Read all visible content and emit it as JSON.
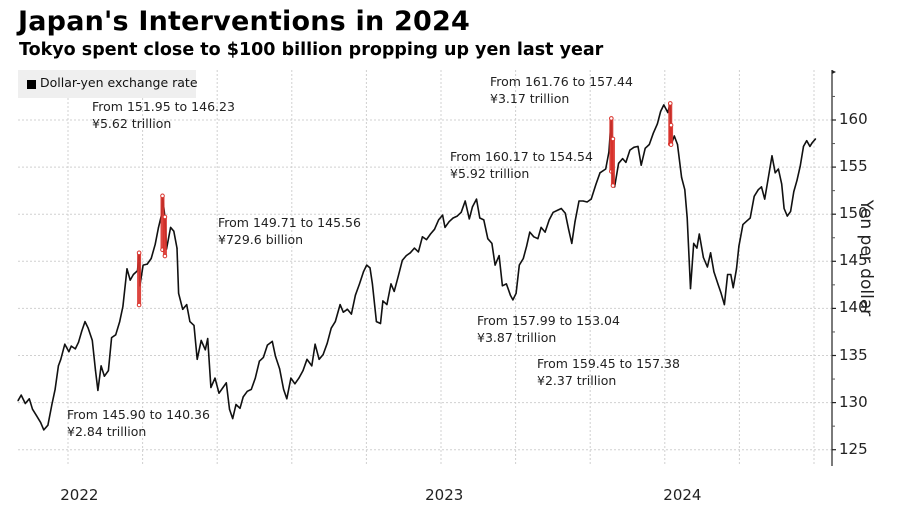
{
  "header": {
    "title": "Japan's Interventions in 2024",
    "subtitle": "Tokyo spent close to $100 billion propping up yen last year"
  },
  "colors": {
    "line": "#111111",
    "intervention": "#d9322b",
    "grid": "#d0d0d0",
    "legend_bg": "#efefef"
  },
  "chart_data": {
    "type": "line",
    "title": "Japan's Interventions in 2024",
    "subtitle": "Tokyo spent close to $100 billion propping up yen last year",
    "xlabel": "",
    "ylabel": "Yen per dollar",
    "ylim": [
      124,
      164
    ],
    "xlim": [
      "2022-04-25",
      "2025-01-10"
    ],
    "yticks": [
      125,
      130,
      135,
      140,
      145,
      150,
      155,
      160
    ],
    "xticks": [
      {
        "label": "2022",
        "date": "2022-07-10"
      },
      {
        "label": "2023",
        "date": "2023-10-05"
      },
      {
        "label": "2024",
        "date": "2024-07-26"
      }
    ],
    "grid": true,
    "legend": {
      "position": "top-left",
      "entries": [
        "Dollar-yen exchange rate"
      ]
    },
    "series": [
      {
        "name": "Dollar-yen exchange rate",
        "points": [
          [
            "2022-04-25",
            130.2
          ],
          [
            "2022-04-29",
            130.8
          ],
          [
            "2022-05-04",
            129.9
          ],
          [
            "2022-05-09",
            130.4
          ],
          [
            "2022-05-13",
            129.3
          ],
          [
            "2022-05-18",
            128.6
          ],
          [
            "2022-05-23",
            127.9
          ],
          [
            "2022-05-27",
            127.1
          ],
          [
            "2022-06-01",
            127.6
          ],
          [
            "2022-06-06",
            129.8
          ],
          [
            "2022-06-10",
            131.4
          ],
          [
            "2022-06-14",
            133.9
          ],
          [
            "2022-06-17",
            134.6
          ],
          [
            "2022-06-22",
            136.2
          ],
          [
            "2022-06-27",
            135.4
          ],
          [
            "2022-06-30",
            136.0
          ],
          [
            "2022-07-05",
            135.7
          ],
          [
            "2022-07-09",
            136.4
          ],
          [
            "2022-07-13",
            137.6
          ],
          [
            "2022-07-17",
            138.6
          ],
          [
            "2022-07-21",
            137.9
          ],
          [
            "2022-07-26",
            136.6
          ],
          [
            "2022-07-30",
            133.4
          ],
          [
            "2022-08-02",
            131.3
          ],
          [
            "2022-08-06",
            133.9
          ],
          [
            "2022-08-10",
            132.8
          ],
          [
            "2022-08-15",
            133.4
          ],
          [
            "2022-08-19",
            136.9
          ],
          [
            "2022-08-24",
            137.2
          ],
          [
            "2022-08-29",
            138.6
          ],
          [
            "2022-09-02",
            140.2
          ],
          [
            "2022-09-07",
            144.2
          ],
          [
            "2022-09-11",
            143.0
          ],
          [
            "2022-09-15",
            143.6
          ],
          [
            "2022-09-20",
            144.0
          ],
          [
            "2022-09-22",
            145.9
          ],
          [
            "2022-09-23",
            142.4
          ],
          [
            "2022-09-27",
            144.6
          ],
          [
            "2022-10-02",
            144.7
          ],
          [
            "2022-10-07",
            145.3
          ],
          [
            "2022-10-12",
            146.8
          ],
          [
            "2022-10-16",
            148.6
          ],
          [
            "2022-10-20",
            150.0
          ],
          [
            "2022-10-21",
            151.9
          ],
          [
            "2022-10-24",
            149.7
          ],
          [
            "2022-10-26",
            146.3
          ],
          [
            "2022-10-31",
            148.6
          ],
          [
            "2022-11-04",
            148.2
          ],
          [
            "2022-11-08",
            146.4
          ],
          [
            "2022-11-10",
            141.6
          ],
          [
            "2022-11-15",
            139.9
          ],
          [
            "2022-11-20",
            140.4
          ],
          [
            "2022-11-24",
            138.6
          ],
          [
            "2022-11-29",
            138.2
          ],
          [
            "2022-12-03",
            134.6
          ],
          [
            "2022-12-08",
            136.6
          ],
          [
            "2022-12-13",
            135.6
          ],
          [
            "2022-12-16",
            136.8
          ],
          [
            "2022-12-20",
            131.6
          ],
          [
            "2022-12-25",
            132.6
          ],
          [
            "2022-12-30",
            131.0
          ],
          [
            "2023-01-04",
            131.6
          ],
          [
            "2023-01-08",
            132.1
          ],
          [
            "2023-01-12",
            129.3
          ],
          [
            "2023-01-16",
            128.3
          ],
          [
            "2023-01-20",
            129.8
          ],
          [
            "2023-01-25",
            129.4
          ],
          [
            "2023-01-29",
            130.6
          ],
          [
            "2023-02-03",
            131.2
          ],
          [
            "2023-02-08",
            131.4
          ],
          [
            "2023-02-13",
            132.6
          ],
          [
            "2023-02-18",
            134.4
          ],
          [
            "2023-02-23",
            134.8
          ],
          [
            "2023-02-28",
            136.1
          ],
          [
            "2023-03-06",
            136.5
          ],
          [
            "2023-03-10",
            134.9
          ],
          [
            "2023-03-15",
            133.6
          ],
          [
            "2023-03-20",
            131.4
          ],
          [
            "2023-03-24",
            130.4
          ],
          [
            "2023-03-29",
            132.6
          ],
          [
            "2023-04-03",
            132.0
          ],
          [
            "2023-04-08",
            132.6
          ],
          [
            "2023-04-13",
            133.4
          ],
          [
            "2023-04-18",
            134.6
          ],
          [
            "2023-04-24",
            133.9
          ],
          [
            "2023-04-28",
            136.2
          ],
          [
            "2023-05-03",
            134.6
          ],
          [
            "2023-05-08",
            135.1
          ],
          [
            "2023-05-13",
            136.3
          ],
          [
            "2023-05-18",
            137.9
          ],
          [
            "2023-05-23",
            138.6
          ],
          [
            "2023-05-29",
            140.4
          ],
          [
            "2023-06-02",
            139.6
          ],
          [
            "2023-06-07",
            139.9
          ],
          [
            "2023-06-12",
            139.4
          ],
          [
            "2023-06-17",
            141.4
          ],
          [
            "2023-06-22",
            142.6
          ],
          [
            "2023-06-27",
            143.9
          ],
          [
            "2023-07-01",
            144.6
          ],
          [
            "2023-07-05",
            144.3
          ],
          [
            "2023-07-08",
            142.6
          ],
          [
            "2023-07-13",
            138.6
          ],
          [
            "2023-07-18",
            138.4
          ],
          [
            "2023-07-21",
            140.8
          ],
          [
            "2023-07-26",
            140.4
          ],
          [
            "2023-07-31",
            142.6
          ],
          [
            "2023-08-04",
            141.8
          ],
          [
            "2023-08-09",
            143.4
          ],
          [
            "2023-08-14",
            145.1
          ],
          [
            "2023-08-19",
            145.6
          ],
          [
            "2023-08-24",
            145.9
          ],
          [
            "2023-08-29",
            146.4
          ],
          [
            "2023-09-03",
            146.0
          ],
          [
            "2023-09-08",
            147.6
          ],
          [
            "2023-09-13",
            147.3
          ],
          [
            "2023-09-18",
            147.9
          ],
          [
            "2023-09-23",
            148.4
          ],
          [
            "2023-09-28",
            149.4
          ],
          [
            "2023-10-03",
            149.9
          ],
          [
            "2023-10-06",
            148.6
          ],
          [
            "2023-10-11",
            149.2
          ],
          [
            "2023-10-16",
            149.6
          ],
          [
            "2023-10-21",
            149.8
          ],
          [
            "2023-10-26",
            150.2
          ],
          [
            "2023-10-31",
            151.4
          ],
          [
            "2023-11-05",
            149.5
          ],
          [
            "2023-11-09",
            150.8
          ],
          [
            "2023-11-14",
            151.6
          ],
          [
            "2023-11-18",
            149.6
          ],
          [
            "2023-11-23",
            149.4
          ],
          [
            "2023-11-28",
            147.4
          ],
          [
            "2023-12-03",
            146.9
          ],
          [
            "2023-12-07",
            144.6
          ],
          [
            "2023-12-12",
            145.6
          ],
          [
            "2023-12-16",
            142.4
          ],
          [
            "2023-12-21",
            142.6
          ],
          [
            "2023-12-26",
            141.4
          ],
          [
            "2023-12-29",
            140.9
          ],
          [
            "2024-01-02",
            141.6
          ],
          [
            "2024-01-06",
            144.6
          ],
          [
            "2024-01-11",
            145.3
          ],
          [
            "2024-01-15",
            146.6
          ],
          [
            "2024-01-19",
            148.1
          ],
          [
            "2024-01-24",
            147.6
          ],
          [
            "2024-01-29",
            147.4
          ],
          [
            "2024-02-02",
            148.6
          ],
          [
            "2024-02-07",
            148.1
          ],
          [
            "2024-02-12",
            149.4
          ],
          [
            "2024-02-17",
            150.2
          ],
          [
            "2024-02-22",
            150.4
          ],
          [
            "2024-02-27",
            150.6
          ],
          [
            "2024-03-03",
            150.1
          ],
          [
            "2024-03-07",
            148.4
          ],
          [
            "2024-03-11",
            146.9
          ],
          [
            "2024-03-15",
            149.2
          ],
          [
            "2024-03-20",
            151.4
          ],
          [
            "2024-03-25",
            151.4
          ],
          [
            "2024-03-30",
            151.3
          ],
          [
            "2024-04-04",
            151.6
          ],
          [
            "2024-04-10",
            153.2
          ],
          [
            "2024-04-15",
            154.4
          ],
          [
            "2024-04-22",
            154.8
          ],
          [
            "2024-04-26",
            156.6
          ],
          [
            "2024-04-29",
            160.2
          ],
          [
            "2024-05-01",
            153.1
          ],
          [
            "2024-05-03",
            152.9
          ],
          [
            "2024-05-08",
            155.4
          ],
          [
            "2024-05-13",
            155.9
          ],
          [
            "2024-05-17",
            155.5
          ],
          [
            "2024-05-22",
            156.8
          ],
          [
            "2024-05-27",
            157.1
          ],
          [
            "2024-06-01",
            157.2
          ],
          [
            "2024-06-05",
            155.2
          ],
          [
            "2024-06-10",
            157.0
          ],
          [
            "2024-06-15",
            157.4
          ],
          [
            "2024-06-20",
            158.6
          ],
          [
            "2024-06-25",
            159.6
          ],
          [
            "2024-06-29",
            160.9
          ],
          [
            "2024-07-03",
            161.6
          ],
          [
            "2024-07-08",
            160.8
          ],
          [
            "2024-07-11",
            161.8
          ],
          [
            "2024-07-12",
            157.4
          ],
          [
            "2024-07-16",
            158.3
          ],
          [
            "2024-07-20",
            157.4
          ],
          [
            "2024-07-25",
            153.9
          ],
          [
            "2024-07-29",
            152.6
          ],
          [
            "2024-08-01",
            149.6
          ],
          [
            "2024-08-05",
            142.1
          ],
          [
            "2024-08-09",
            146.9
          ],
          [
            "2024-08-13",
            146.4
          ],
          [
            "2024-08-16",
            147.9
          ],
          [
            "2024-08-21",
            145.4
          ],
          [
            "2024-08-26",
            144.4
          ],
          [
            "2024-08-30",
            145.9
          ],
          [
            "2024-09-03",
            143.9
          ],
          [
            "2024-09-08",
            142.6
          ],
          [
            "2024-09-12",
            141.6
          ],
          [
            "2024-09-16",
            140.4
          ],
          [
            "2024-09-20",
            143.6
          ],
          [
            "2024-09-24",
            143.6
          ],
          [
            "2024-09-27",
            142.2
          ],
          [
            "2024-10-01",
            144.2
          ],
          [
            "2024-10-04",
            146.6
          ],
          [
            "2024-10-09",
            148.9
          ],
          [
            "2024-10-14",
            149.3
          ],
          [
            "2024-10-18",
            149.6
          ],
          [
            "2024-10-23",
            151.9
          ],
          [
            "2024-10-28",
            152.6
          ],
          [
            "2024-11-01",
            152.9
          ],
          [
            "2024-11-05",
            151.6
          ],
          [
            "2024-11-09",
            153.6
          ],
          [
            "2024-11-14",
            156.2
          ],
          [
            "2024-11-18",
            154.4
          ],
          [
            "2024-11-22",
            154.8
          ],
          [
            "2024-11-26",
            153.2
          ],
          [
            "2024-11-29",
            150.6
          ],
          [
            "2024-12-03",
            149.8
          ],
          [
            "2024-12-07",
            150.3
          ],
          [
            "2024-12-11",
            152.4
          ],
          [
            "2024-12-15",
            153.6
          ],
          [
            "2024-12-19",
            155.1
          ],
          [
            "2024-12-23",
            157.2
          ],
          [
            "2024-12-27",
            157.8
          ],
          [
            "2024-12-31",
            157.2
          ],
          [
            "2025-01-03",
            157.6
          ],
          [
            "2025-01-07",
            158.0
          ]
        ]
      }
    ],
    "interventions": [
      {
        "date": "2022-09-22",
        "from": 145.9,
        "to": 140.36,
        "amount": "¥2.84 trillion",
        "label": "From 145.90 to 140.36"
      },
      {
        "date": "2022-10-21",
        "from": 151.95,
        "to": 146.23,
        "amount": "¥5.62 trillion",
        "label": "From 151.95 to 146.23"
      },
      {
        "date": "2022-10-24",
        "from": 149.71,
        "to": 145.56,
        "amount": "¥729.6 billion",
        "label": "From 149.71 to 145.56"
      },
      {
        "date": "2024-04-29",
        "from": 160.17,
        "to": 154.54,
        "amount": "¥5.92 trillion",
        "label": "From 160.17 to 154.54"
      },
      {
        "date": "2024-05-01",
        "from": 157.99,
        "to": 153.04,
        "amount": "¥3.87 trillion",
        "label": "From 157.99 to 153.04"
      },
      {
        "date": "2024-07-11",
        "from": 161.76,
        "to": 157.44,
        "amount": "¥3.17 trillion",
        "label": "From 161.76 to 157.44"
      },
      {
        "date": "2024-07-12",
        "from": 159.45,
        "to": 157.38,
        "amount": "¥2.37 trillion",
        "label": "From 159.45 to 157.38"
      }
    ]
  }
}
